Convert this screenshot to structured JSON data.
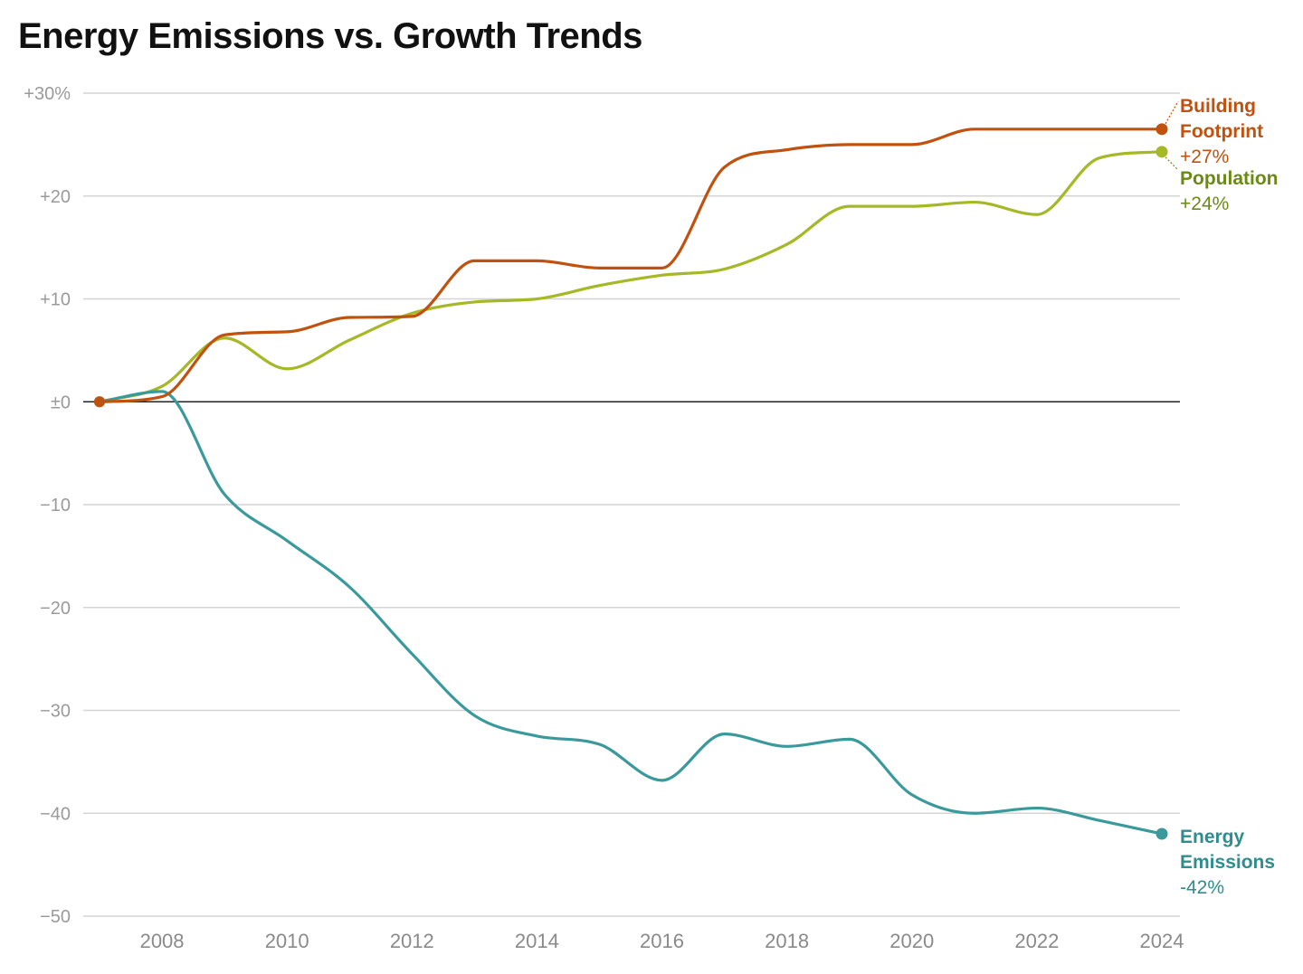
{
  "chart_data": {
    "type": "line",
    "title": "Energy Emissions vs. Growth Trends",
    "xlabel": "",
    "ylabel": "",
    "ylim": [
      -50,
      30
    ],
    "xlim": [
      2007,
      2024
    ],
    "grid": true,
    "y_ticks": [
      {
        "value": 30,
        "label": "+30%"
      },
      {
        "value": 20,
        "label": "+20"
      },
      {
        "value": 10,
        "label": "+10"
      },
      {
        "value": 0,
        "label": "±0"
      },
      {
        "value": -10,
        "label": "−10"
      },
      {
        "value": -20,
        "label": "−20"
      },
      {
        "value": -30,
        "label": "−30"
      },
      {
        "value": -40,
        "label": "−40"
      },
      {
        "value": -50,
        "label": "−50"
      }
    ],
    "x_ticks": [
      {
        "value": 2008,
        "label": "2008"
      },
      {
        "value": 2010,
        "label": "2010"
      },
      {
        "value": 2012,
        "label": "2012"
      },
      {
        "value": 2014,
        "label": "2014"
      },
      {
        "value": 2016,
        "label": "2016"
      },
      {
        "value": 2018,
        "label": "2018"
      },
      {
        "value": 2020,
        "label": "2020"
      },
      {
        "value": 2022,
        "label": "2022"
      },
      {
        "value": 2024,
        "label": "2024"
      }
    ],
    "x": [
      2007,
      2008,
      2009,
      2010,
      2011,
      2012,
      2013,
      2014,
      2015,
      2016,
      2017,
      2018,
      2019,
      2020,
      2021,
      2022,
      2023,
      2024
    ],
    "series": [
      {
        "name": "Building Footprint",
        "label_lines": [
          "Building",
          "Footprint"
        ],
        "end_label": "+27%",
        "color": "#c1510e",
        "values": [
          0,
          0.5,
          6.5,
          6.8,
          8.2,
          8.3,
          13.7,
          13.7,
          13.0,
          13.0,
          22.8,
          24.5,
          25.0,
          25.0,
          26.5,
          26.5,
          26.5,
          26.5
        ]
      },
      {
        "name": "Population",
        "label_lines": [
          "Population"
        ],
        "end_label": "+24%",
        "color": "#a5b825",
        "label_color": "#6b8a14",
        "values": [
          0,
          1.5,
          6.2,
          3.2,
          6.0,
          8.6,
          9.7,
          10.0,
          11.3,
          12.3,
          12.9,
          15.3,
          19.0,
          19.0,
          19.4,
          18.2,
          23.7,
          24.3
        ]
      },
      {
        "name": "Energy Emissions",
        "label_lines": [
          "Energy",
          "Emissions"
        ],
        "end_label": "-42%",
        "color": "#3a9a9b",
        "label_color": "#2f8d8e",
        "values": [
          0,
          1.0,
          -9.0,
          -13.5,
          -18.0,
          -24.5,
          -30.5,
          -32.5,
          -33.3,
          -36.8,
          -32.3,
          -33.5,
          -32.8,
          -38.2,
          -40.0,
          -39.5,
          -40.7,
          -42.0
        ]
      }
    ]
  }
}
